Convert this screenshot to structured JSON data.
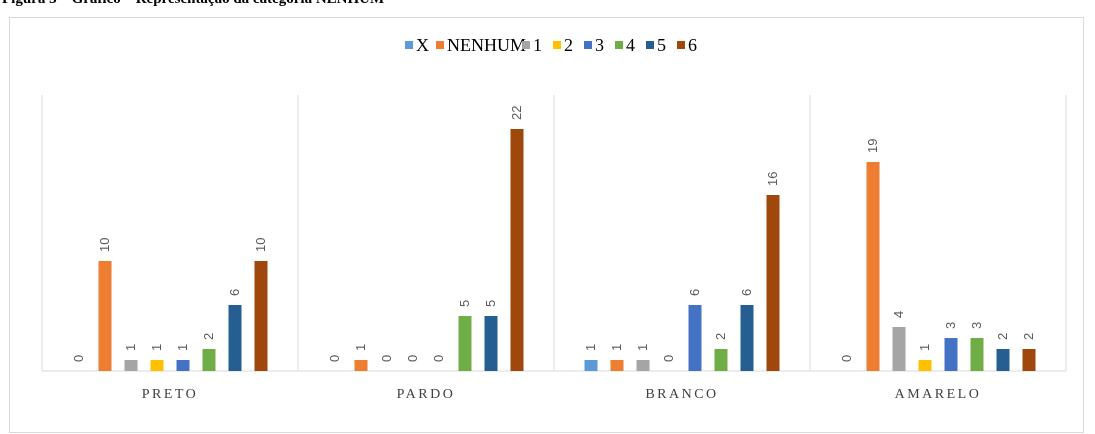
{
  "caption": "Figura 3 – Gráfico – Representação da categoria NENHUM",
  "chart_data": {
    "type": "bar",
    "categories": [
      "PRETO",
      "PARDO",
      "BRANCO",
      "AMARELO"
    ],
    "series": [
      {
        "name": "X",
        "color": "#5b9bd5",
        "values": [
          0,
          0,
          1,
          0
        ]
      },
      {
        "name": "NENHUM",
        "color": "#ed7d31",
        "values": [
          10,
          1,
          1,
          19
        ]
      },
      {
        "name": "1",
        "color": "#a5a5a5",
        "values": [
          1,
          0,
          1,
          4
        ]
      },
      {
        "name": "2",
        "color": "#ffc000",
        "values": [
          1,
          0,
          0,
          1
        ]
      },
      {
        "name": "3",
        "color": "#4472c4",
        "values": [
          1,
          0,
          6,
          3
        ]
      },
      {
        "name": "4",
        "color": "#70ad47",
        "values": [
          2,
          5,
          2,
          3
        ]
      },
      {
        "name": "5",
        "color": "#255e91",
        "values": [
          6,
          5,
          6,
          2
        ]
      },
      {
        "name": "6",
        "color": "#9e480e",
        "values": [
          10,
          22,
          16,
          2
        ]
      }
    ],
    "title": "",
    "xlabel": "",
    "ylabel": "",
    "ylim": [
      0,
      22
    ],
    "grid": false,
    "legend_position": "top"
  }
}
